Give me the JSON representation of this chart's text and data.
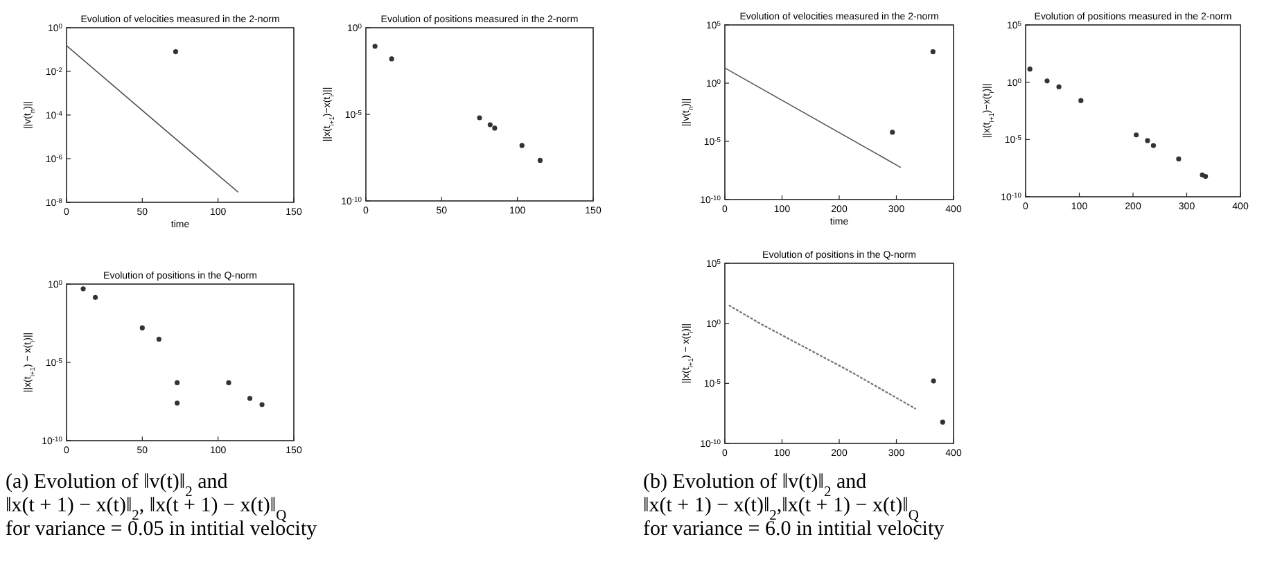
{
  "chart_data": [
    {
      "type": "line",
      "title": "Evolution of velocities measured in the 2-norm",
      "xlabel": "time",
      "ylabel": "||v(t$_{n}$)||",
      "log": "y",
      "xlim": [
        0,
        150
      ],
      "xticks": [
        0,
        50,
        100,
        150
      ],
      "ylim": [
        1e-08,
        1
      ],
      "yticks": [
        {
          "value": 1,
          "label": "10$^{0}$"
        },
        {
          "value": 0.01,
          "label": "10$^{-2}$"
        },
        {
          "value": 0.0001,
          "label": "10$^{-4}$"
        },
        {
          "value": 1e-06,
          "label": "10$^{-6}$"
        },
        {
          "value": 1e-08,
          "label": "10$^{-8}$"
        }
      ],
      "series": [
        {
          "color": "#555555",
          "line_style": "solid",
          "x": [
            0,
            113
          ],
          "values": [
            0.15,
            3e-08
          ]
        },
        {
          "type": "scatter",
          "color": "#333333",
          "marker": "circle",
          "x": [
            72
          ],
          "values": [
            0.08
          ]
        }
      ]
    },
    {
      "type": "scatter",
      "title": "Evolution of positions measured in the 2-norm",
      "ylabel": "||x(t$_{i+1}$)−x(t$_{i}$)||",
      "log": "y",
      "xlim": [
        0,
        150
      ],
      "xticks": [
        0,
        50,
        100,
        150
      ],
      "ylim": [
        1e-10,
        1
      ],
      "yticks": [
        {
          "value": 1,
          "label": "10$^{0}$"
        },
        {
          "value": 1e-05,
          "label": "10$^{-5}$"
        },
        {
          "value": 1e-10,
          "label": "10$^{-10}$"
        }
      ],
      "series": [
        {
          "color": "#333333",
          "marker": "circle",
          "x": [
            6,
            17,
            75,
            82,
            85,
            103,
            115
          ],
          "values": [
            0.085,
            0.016,
            6.3e-06,
            2.5e-06,
            1.6e-06,
            1.6e-07,
            2.2e-08
          ]
        }
      ]
    },
    {
      "type": "scatter",
      "title": "Evolution of positions in the Q-norm",
      "ylabel": "||x(t$_{i+1}$) − x(t$_{i}$)||",
      "log": "y",
      "xlim": [
        0,
        150
      ],
      "xticks": [
        0,
        50,
        100,
        150
      ],
      "ylim": [
        1e-10,
        1
      ],
      "yticks": [
        {
          "value": 1,
          "label": "10$^{0}$"
        },
        {
          "value": 1e-05,
          "label": "10$^{-5}$"
        },
        {
          "value": 1e-10,
          "label": "10$^{-10}$"
        }
      ],
      "annotations": [
        "(a) Evolution of ‖v(t)‖$_{2}$ and",
        "‖x(t + 1) − x(t)‖$_{2}$, ‖x(t + 1) − x(t)‖$_{Q}$",
        "for variance = 0.05 in intitial velocity"
      ],
      "series": [
        {
          "color": "#333333",
          "marker": "circle",
          "x": [
            11,
            19,
            50,
            61,
            73,
            73,
            107,
            121,
            129
          ],
          "values": [
            0.5,
            0.14,
            0.0016,
            0.0003,
            5e-07,
            2.5e-08,
            5e-07,
            5e-08,
            2e-08
          ]
        }
      ]
    },
    {
      "type": "line",
      "title": "Evolution of velocities measured in the 2-norm",
      "xlabel": "time",
      "ylabel": "||v(t$_{n}$)||",
      "log": "y",
      "xlim": [
        0,
        400
      ],
      "xticks": [
        0,
        100,
        200,
        300,
        400
      ],
      "ylim": [
        1e-10,
        100000
      ],
      "yticks": [
        {
          "value": 100000,
          "label": "10$^{5}$"
        },
        {
          "value": 1,
          "label": "10$^{0}$"
        },
        {
          "value": 1e-05,
          "label": "10$^{-5}$"
        },
        {
          "value": 1e-10,
          "label": "10$^{-10}$"
        }
      ],
      "series": [
        {
          "color": "#555555",
          "line_style": "solid",
          "x": [
            0,
            307
          ],
          "values": [
            20,
            6e-08
          ]
        },
        {
          "type": "scatter",
          "color": "#333333",
          "marker": "circle",
          "x": [
            364,
            293
          ],
          "values": [
            500,
            6e-05
          ]
        }
      ]
    },
    {
      "type": "scatter",
      "title": "Evolution of positions measured in the 2-norm",
      "ylabel": "||x(t$_{i+1}$)−x(t$_{i}$)||",
      "log": "y",
      "xlim": [
        0,
        400
      ],
      "xticks": [
        0,
        100,
        200,
        300,
        400
      ],
      "ylim": [
        1e-10,
        100000
      ],
      "yticks": [
        {
          "value": 100000,
          "label": "10$^{5}$"
        },
        {
          "value": 1,
          "label": "10$^{0}$"
        },
        {
          "value": 1e-05,
          "label": "10$^{-5}$"
        },
        {
          "value": 1e-10,
          "label": "10$^{-10}$"
        }
      ],
      "series": [
        {
          "color": "#333333",
          "marker": "circle",
          "x": [
            8,
            40,
            62,
            103,
            206,
            227,
            238,
            285,
            329,
            335
          ],
          "values": [
            14,
            1.3,
            0.4,
            0.025,
            2.5e-05,
            8e-06,
            3e-06,
            2e-07,
            8e-09,
            6e-09
          ]
        }
      ]
    },
    {
      "type": "line",
      "title": "Evolution of positions in the Q-norm",
      "ylabel": "||x(t$_{i+1}$) − x(t$_{i}$)||",
      "log": "y",
      "xlim": [
        0,
        400
      ],
      "xticks": [
        0,
        100,
        200,
        300,
        400
      ],
      "ylim": [
        1e-10,
        100000
      ],
      "yticks": [
        {
          "value": 100000,
          "label": "10$^{5}$"
        },
        {
          "value": 1,
          "label": "10$^{0}$"
        },
        {
          "value": 1e-05,
          "label": "10$^{-5}$"
        },
        {
          "value": 1e-10,
          "label": "10$^{-10}$"
        }
      ],
      "annotations": [
        "(b) Evolution of ‖v(t)‖$_{2}$ and",
        "‖x(t + 1) − x(t)‖$_{2}$,‖x(t + 1) − x(t)‖$_{Q}$",
        "for variance = 6.0 in intitial velocity"
      ],
      "series": [
        {
          "color": "#777777",
          "line_style": "dotted",
          "x": [
            8,
            61,
            219,
            333
          ],
          "values": [
            30,
            1,
            0.0001,
            8e-08
          ]
        },
        {
          "type": "scatter",
          "color": "#333333",
          "marker": "circle",
          "x": [
            365,
            381
          ],
          "values": [
            1.6e-05,
            6e-09
          ]
        }
      ]
    }
  ]
}
